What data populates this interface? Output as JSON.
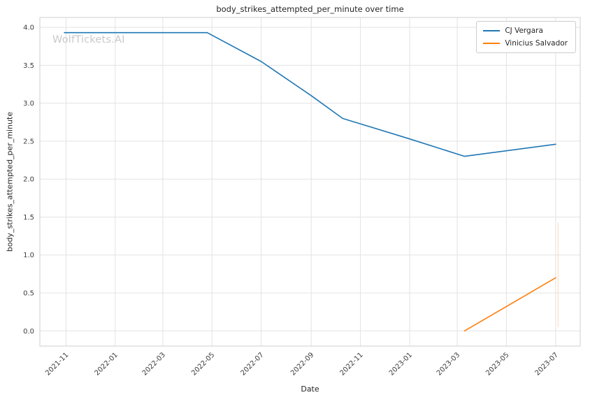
{
  "page": {
    "watermark": "WolfTickets.AI"
  },
  "chart_data": {
    "type": "line",
    "title": "body_strikes_attempted_per_minute over time",
    "xlabel": "Date",
    "ylabel": "body_strikes_attempted_per_minute",
    "grid": true,
    "legend_position": "upper right",
    "ylim": [
      -0.2,
      4.13
    ],
    "y_ticks": [
      0.0,
      0.5,
      1.0,
      1.5,
      2.0,
      2.5,
      3.0,
      3.5,
      4.0
    ],
    "x_ticks": [
      "2021-11",
      "2022-01",
      "2022-03",
      "2022-05",
      "2022-07",
      "2022-09",
      "2022-11",
      "2023-01",
      "2023-03",
      "2023-05",
      "2023-07"
    ],
    "series": [
      {
        "name": "CJ Vergara",
        "color": "#1f77b4",
        "points": [
          [
            "2021-10-30",
            3.93
          ],
          [
            "2022-04-25",
            3.93
          ],
          [
            "2022-07-01",
            3.55
          ],
          [
            "2022-09-01",
            3.1
          ],
          [
            "2022-10-10",
            2.8
          ],
          [
            "2023-01-01",
            2.53
          ],
          [
            "2023-03-10",
            2.3
          ],
          [
            "2023-07-01",
            2.46
          ]
        ]
      },
      {
        "name": "Vinicius Salvador",
        "color": "#ff7f0e",
        "points": [
          [
            "2023-03-10",
            0.0
          ],
          [
            "2023-07-01",
            0.7
          ]
        ]
      }
    ],
    "annotations": [
      {
        "type": "vline",
        "x": "2023-07-04",
        "y0": 0.05,
        "y1": 1.43,
        "color": "#ff7f0e",
        "opacity": 0.3,
        "note": "faint vertical line near last Vinicius Salvador point"
      }
    ]
  }
}
